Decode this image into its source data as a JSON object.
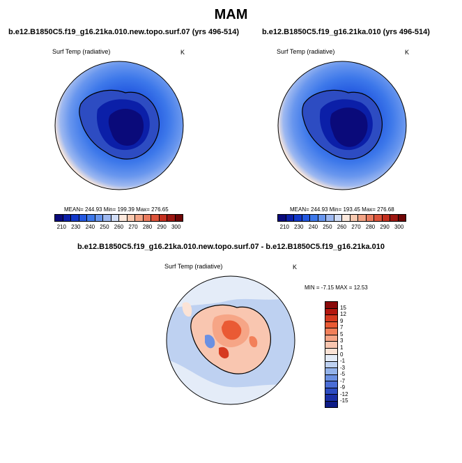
{
  "main_title": "MAM",
  "chart_data": [
    {
      "type": "heatmap",
      "title": "b.e12.B1850C5.f19_g16.21ka.010.new.topo.surf.07 (yrs 496-514)",
      "variable": "Surf Temp (radiative)",
      "units": "K",
      "stats": {
        "mean": 244.93,
        "min": 199.39,
        "max": 276.65
      },
      "stats_text": "MEAN= 244.93   Min= 199.39   Max= 276.65",
      "colorbar_ticks": [
        "210",
        "230",
        "240",
        "250",
        "260",
        "270",
        "280",
        "290",
        "300"
      ],
      "colorbar_colors": [
        "#0a0a7a",
        "#0b1fa8",
        "#1238c9",
        "#2358e0",
        "#3d78ea",
        "#6896ee",
        "#9db8f0",
        "#d0dcf5",
        "#fbe8dc",
        "#f8c9b0",
        "#f3a486",
        "#ea7b5e",
        "#dc533a",
        "#c4301f",
        "#9c1610",
        "#6e0505"
      ]
    },
    {
      "type": "heatmap",
      "title": "b.e12.B1850C5.f19_g16.21ka.010 (yrs 496-514)",
      "variable": "Surf Temp (radiative)",
      "units": "K",
      "stats": {
        "mean": 244.93,
        "min": 193.45,
        "max": 276.68
      },
      "stats_text": "MEAN= 244.93   Min= 193.45   Max= 276.68",
      "colorbar_ticks": [
        "210",
        "230",
        "240",
        "250",
        "260",
        "270",
        "280",
        "290",
        "300"
      ],
      "colorbar_colors": [
        "#0a0a7a",
        "#0b1fa8",
        "#1238c9",
        "#2358e0",
        "#3d78ea",
        "#6896ee",
        "#9db8f0",
        "#d0dcf5",
        "#fbe8dc",
        "#f8c9b0",
        "#f3a486",
        "#ea7b5e",
        "#dc533a",
        "#c4301f",
        "#9c1610",
        "#6e0505"
      ]
    },
    {
      "type": "heatmap",
      "title": "b.e12.B1850C5.f19_g16.21ka.010.new.topo.surf.07 - b.e12.B1850C5.f19_g16.21ka.010",
      "variable": "Surf Temp (radiative)",
      "units": "K",
      "stats": {
        "min": -7.15,
        "max": 12.53
      },
      "stats_text": "MIN =  -7.15 MAX =  12.53",
      "colorbar_ticks": [
        "15",
        "12",
        "9",
        "7",
        "5",
        "3",
        "1",
        "0",
        "-1",
        "-3",
        "-5",
        "-7",
        "-9",
        "-12",
        "-15"
      ],
      "colorbar_colors": [
        "#8a0a0a",
        "#b3170f",
        "#d63a20",
        "#ea5a34",
        "#f2805a",
        "#f6a586",
        "#f9c6b0",
        "#fbe3d6",
        "#e4ecf8",
        "#bed1f1",
        "#93b2ea",
        "#6b90e2",
        "#4a6dd6",
        "#2d4cc2",
        "#1a2fa6",
        "#0d1c86"
      ]
    }
  ]
}
